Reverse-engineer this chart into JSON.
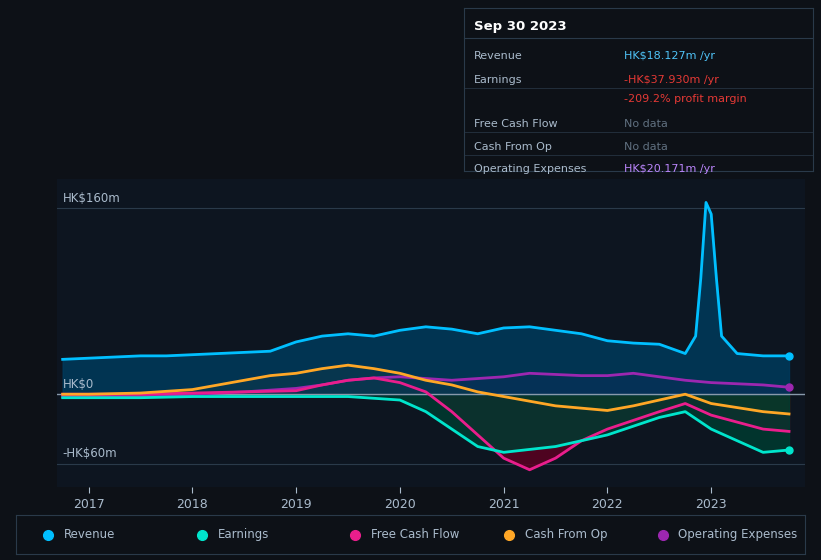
{
  "bg_color": "#0d1117",
  "chart_bg": "#0d1520",
  "grid_color": "#2a3a4a",
  "zero_line_color": "#8899aa",
  "title_box": {
    "date": "Sep 30 2023",
    "rows": [
      {
        "label": "Revenue",
        "value": "HK$18.127m /yr",
        "value_color": "#4fc3f7"
      },
      {
        "label": "Earnings",
        "value": "-HK$37.930m /yr",
        "value_color": "#e53935"
      },
      {
        "label": "",
        "value": "-209.2% profit margin",
        "value_color": "#e53935"
      },
      {
        "label": "Free Cash Flow",
        "value": "No data",
        "value_color": "#607080"
      },
      {
        "label": "Cash From Op",
        "value": "No data",
        "value_color": "#607080"
      },
      {
        "label": "Operating Expenses",
        "value": "HK$20.171m /yr",
        "value_color": "#bb86fc"
      }
    ],
    "box_bg": "#0d1117",
    "box_border": "#2a3a4a",
    "label_color": "#aabbcc",
    "date_color": "#ffffff"
  },
  "ylim": [
    -80,
    185
  ],
  "yticks": [
    160,
    0,
    -60
  ],
  "ytick_labels": [
    "HK$160m",
    "HK$0",
    "-HK$60m"
  ],
  "xlim": [
    2016.7,
    2023.9
  ],
  "xticks": [
    2017,
    2018,
    2019,
    2020,
    2021,
    2022,
    2023
  ],
  "series": {
    "Revenue": {
      "color": "#00bfff",
      "fill_color": "#003a5c",
      "lw": 2.0,
      "x": [
        2016.75,
        2017.0,
        2017.25,
        2017.5,
        2017.75,
        2018.0,
        2018.25,
        2018.5,
        2018.75,
        2019.0,
        2019.25,
        2019.5,
        2019.75,
        2020.0,
        2020.25,
        2020.5,
        2020.75,
        2021.0,
        2021.25,
        2021.5,
        2021.75,
        2022.0,
        2022.25,
        2022.5,
        2022.75,
        2022.85,
        2022.9,
        2022.95,
        2023.0,
        2023.05,
        2023.1,
        2023.25,
        2023.5,
        2023.75
      ],
      "y": [
        30,
        31,
        32,
        33,
        33,
        34,
        35,
        36,
        37,
        45,
        50,
        52,
        50,
        55,
        58,
        56,
        52,
        57,
        58,
        55,
        52,
        46,
        44,
        43,
        35,
        50,
        100,
        165,
        155,
        100,
        50,
        35,
        33,
        33
      ]
    },
    "Earnings": {
      "color": "#00e5cc",
      "fill_color": "#003a30",
      "lw": 2.0,
      "x": [
        2016.75,
        2017.0,
        2017.5,
        2018.0,
        2018.5,
        2019.0,
        2019.5,
        2020.0,
        2020.25,
        2020.5,
        2020.75,
        2021.0,
        2021.5,
        2022.0,
        2022.5,
        2022.75,
        2023.0,
        2023.5,
        2023.75
      ],
      "y": [
        -3,
        -3,
        -3,
        -2,
        -2,
        -2,
        -2,
        -5,
        -15,
        -30,
        -45,
        -50,
        -45,
        -35,
        -20,
        -15,
        -30,
        -50,
        -48
      ]
    },
    "Free Cash Flow": {
      "color": "#e91e8c",
      "fill_color": "#5a0020",
      "lw": 2.0,
      "x": [
        2016.75,
        2017.0,
        2017.5,
        2018.0,
        2018.5,
        2019.0,
        2019.25,
        2019.5,
        2019.75,
        2020.0,
        2020.25,
        2020.5,
        2020.75,
        2021.0,
        2021.25,
        2021.5,
        2021.75,
        2022.0,
        2022.5,
        2022.75,
        2023.0,
        2023.5,
        2023.75
      ],
      "y": [
        0,
        0,
        0,
        1,
        2,
        3,
        8,
        12,
        14,
        10,
        2,
        -15,
        -35,
        -55,
        -65,
        -55,
        -40,
        -30,
        -15,
        -8,
        -18,
        -30,
        -32
      ]
    },
    "Cash From Op": {
      "color": "#ffa726",
      "fill_color": "#3a2a00",
      "lw": 2.0,
      "x": [
        2016.75,
        2017.0,
        2017.5,
        2018.0,
        2018.25,
        2018.5,
        2018.75,
        2019.0,
        2019.25,
        2019.5,
        2019.75,
        2020.0,
        2020.25,
        2020.5,
        2020.75,
        2021.0,
        2021.5,
        2022.0,
        2022.25,
        2022.5,
        2022.75,
        2023.0,
        2023.5,
        2023.75
      ],
      "y": [
        0,
        0,
        1,
        4,
        8,
        12,
        16,
        18,
        22,
        25,
        22,
        18,
        12,
        8,
        2,
        -2,
        -10,
        -14,
        -10,
        -5,
        0,
        -8,
        -15,
        -17
      ]
    },
    "Operating Expenses": {
      "color": "#9c27b0",
      "fill_color": "#2a0040",
      "lw": 2.0,
      "x": [
        2016.75,
        2017.0,
        2017.5,
        2018.0,
        2018.5,
        2019.0,
        2019.25,
        2019.5,
        2019.75,
        2020.0,
        2020.5,
        2021.0,
        2021.25,
        2021.5,
        2021.75,
        2022.0,
        2022.25,
        2022.5,
        2022.75,
        2023.0,
        2023.5,
        2023.75
      ],
      "y": [
        -2,
        -2,
        -2,
        0,
        2,
        5,
        8,
        12,
        14,
        15,
        12,
        15,
        18,
        17,
        16,
        16,
        18,
        15,
        12,
        10,
        8,
        6
      ]
    }
  },
  "legend": [
    {
      "label": "Revenue",
      "color": "#00bfff"
    },
    {
      "label": "Earnings",
      "color": "#00e5cc"
    },
    {
      "label": "Free Cash Flow",
      "color": "#e91e8c"
    },
    {
      "label": "Cash From Op",
      "color": "#ffa726"
    },
    {
      "label": "Operating Expenses",
      "color": "#9c27b0"
    }
  ]
}
